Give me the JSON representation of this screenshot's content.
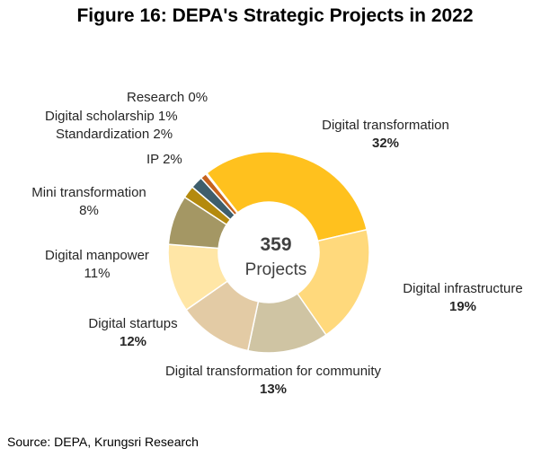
{
  "chart_data": {
    "type": "pie",
    "title": "Figure 16: DEPA's Strategic Projects in 2022",
    "center_value": "359",
    "center_label": "Projects",
    "unit": "%",
    "source": "Source: DEPA, Krungsri Research",
    "slices": [
      {
        "label": "Digital transformation",
        "value": 32,
        "value_text": "32%",
        "color": "#FFC11E",
        "value_bold": true
      },
      {
        "label": "Digital infrastructure",
        "value": 19,
        "value_text": "19%",
        "color": "#FFD97C",
        "value_bold": true
      },
      {
        "label": "Digital transformation for community",
        "value": 13,
        "value_text": "13%",
        "color": "#CFC4A3",
        "value_bold": true
      },
      {
        "label": "Digital startups",
        "value": 12,
        "value_text": "12%",
        "color": "#E3CBA5",
        "value_bold": true
      },
      {
        "label": "Digital manpower",
        "value": 11,
        "value_text": "11%",
        "color": "#FFE6A6",
        "value_bold": false
      },
      {
        "label": "Mini transformation",
        "value": 8,
        "value_text": "8%",
        "color": "#A49764",
        "value_bold": false
      },
      {
        "label": "IP",
        "value": 2,
        "value_text": "2%",
        "color": "#B48A0E",
        "value_bold": false
      },
      {
        "label": "Standardization",
        "value": 2,
        "value_text": "2%",
        "color": "#3E5E6C",
        "value_bold": false
      },
      {
        "label": "Digital scholarship",
        "value": 1,
        "value_text": "1%",
        "color": "#C6621E",
        "value_bold": false
      },
      {
        "label": "Research",
        "value": 0.2,
        "value_text": "0%",
        "color": "#9A3E1D",
        "value_bold": false
      }
    ]
  }
}
